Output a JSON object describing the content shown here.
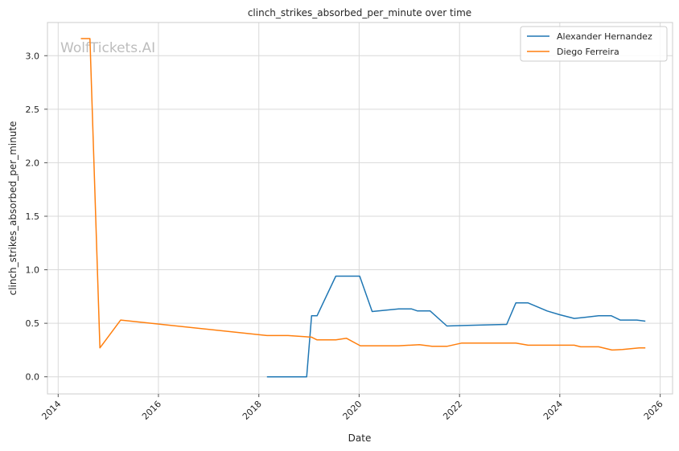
{
  "chart_data": {
    "type": "line",
    "title": "clinch_strikes_absorbed_per_minute over time",
    "xlabel": "Date",
    "ylabel": "clinch_strikes_absorbed_per_minute",
    "watermark": "WolfTickets.AI",
    "x_ticks": [
      "2014",
      "2016",
      "2018",
      "2020",
      "2022",
      "2024",
      "2026"
    ],
    "y_ticks": [
      "0.0",
      "0.5",
      "1.0",
      "1.5",
      "2.0",
      "2.5",
      "3.0"
    ],
    "xlim": [
      "2013-10-15",
      "2026-04-01"
    ],
    "ylim": [
      -0.16,
      3.31
    ],
    "grid": true,
    "legend_position": "top-right",
    "colors": {
      "Alexander Hernandez": "#1f77b4",
      "Diego Ferreira": "#ff7f0e",
      "grid": "#d9d9d9",
      "axis": "#cccccc"
    },
    "series": [
      {
        "name": "Alexander Hernandez",
        "color": "#1f77b4",
        "points": [
          [
            "2018-03-01",
            0.0
          ],
          [
            "2018-07-01",
            0.0
          ],
          [
            "2018-12-15",
            0.0
          ],
          [
            "2019-01-20",
            0.57
          ],
          [
            "2019-03-01",
            0.57
          ],
          [
            "2019-07-15",
            0.94
          ],
          [
            "2020-01-05",
            0.94
          ],
          [
            "2020-04-05",
            0.61
          ],
          [
            "2020-10-15",
            0.635
          ],
          [
            "2021-01-15",
            0.635
          ],
          [
            "2021-03-01",
            0.615
          ],
          [
            "2021-06-01",
            0.615
          ],
          [
            "2021-10-01",
            0.475
          ],
          [
            "2022-03-01",
            0.48
          ],
          [
            "2022-12-10",
            0.49
          ],
          [
            "2023-02-15",
            0.69
          ],
          [
            "2023-05-15",
            0.69
          ],
          [
            "2023-10-01",
            0.615
          ],
          [
            "2024-01-01",
            0.58
          ],
          [
            "2024-04-15",
            0.545
          ],
          [
            "2024-07-01",
            0.555
          ],
          [
            "2024-10-10",
            0.57
          ],
          [
            "2025-01-10",
            0.57
          ],
          [
            "2025-03-15",
            0.53
          ],
          [
            "2025-07-15",
            0.53
          ],
          [
            "2025-09-15",
            0.52
          ]
        ]
      },
      {
        "name": "Diego Ferreira",
        "color": "#ff7f0e",
        "points": [
          [
            "2014-06-15",
            3.16
          ],
          [
            "2014-08-20",
            3.16
          ],
          [
            "2014-11-01",
            0.27
          ],
          [
            "2015-04-01",
            0.53
          ],
          [
            "2018-03-01",
            0.385
          ],
          [
            "2018-08-01",
            0.385
          ],
          [
            "2019-01-20",
            0.37
          ],
          [
            "2019-03-01",
            0.345
          ],
          [
            "2019-07-15",
            0.345
          ],
          [
            "2019-10-01",
            0.36
          ],
          [
            "2020-01-10",
            0.29
          ],
          [
            "2020-10-15",
            0.29
          ],
          [
            "2021-03-15",
            0.3
          ],
          [
            "2021-06-15",
            0.285
          ],
          [
            "2021-10-01",
            0.285
          ],
          [
            "2022-01-15",
            0.315
          ],
          [
            "2023-02-15",
            0.315
          ],
          [
            "2023-05-15",
            0.295
          ],
          [
            "2024-04-15",
            0.295
          ],
          [
            "2024-06-01",
            0.28
          ],
          [
            "2024-10-10",
            0.28
          ],
          [
            "2025-01-15",
            0.25
          ],
          [
            "2025-04-01",
            0.255
          ],
          [
            "2025-08-01",
            0.27
          ],
          [
            "2025-09-15",
            0.27
          ]
        ]
      }
    ]
  }
}
